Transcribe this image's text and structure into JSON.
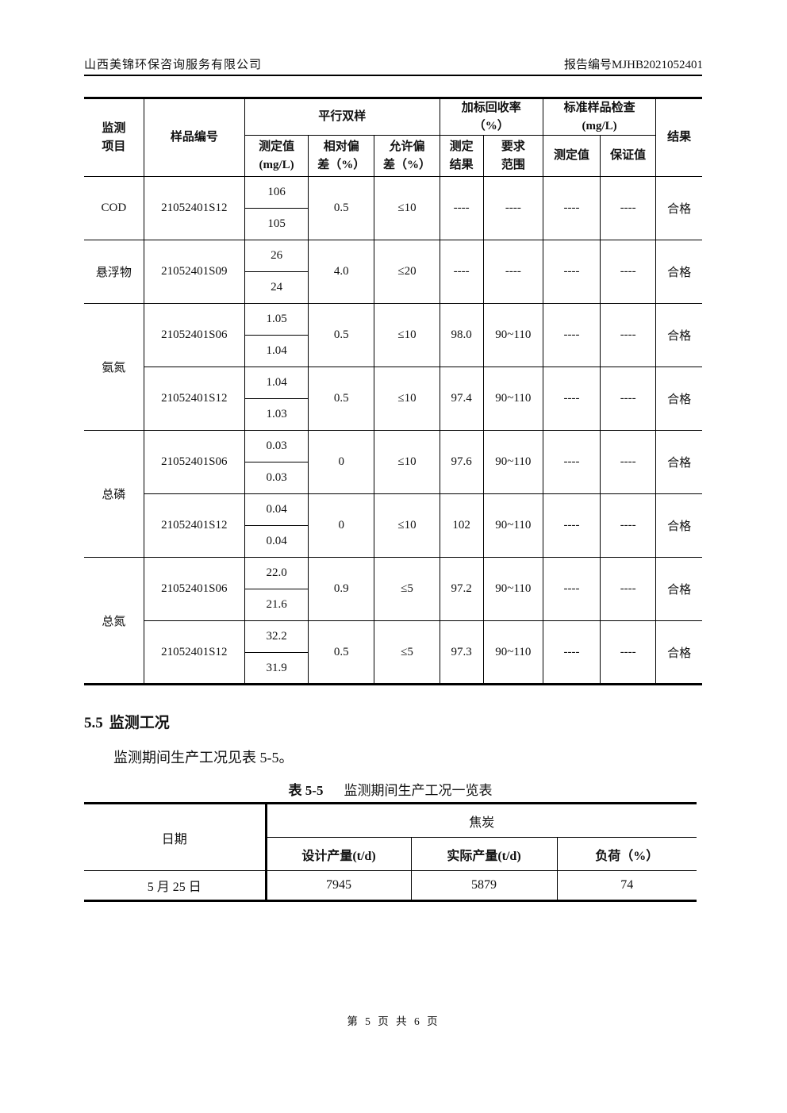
{
  "page_header": {
    "company": "山西美锦环保咨询服务有限公司",
    "report_no": "报告编号MJHB2021052401"
  },
  "qa_table": {
    "headers": {
      "item": "监测\n项目",
      "sample_id": "样品编号",
      "parallel_group": "平行双样",
      "measured_value": "测定值\n(mg/L)",
      "relative_dev": "相对偏\n差（%）",
      "allowed_dev": "允许偏\n差（%）",
      "recovery_group": "加标回收率\n（%）",
      "recovery_result": "测定\n结果",
      "recovery_range": "要求\n范围",
      "std_group": "标准样品检查\n(mg/L)",
      "std_measured": "测定值",
      "std_certified": "保证值",
      "result": "结果"
    },
    "groups": [
      {
        "param": "COD",
        "samples": [
          {
            "id": "21052401S12",
            "values": [
              "106",
              "105"
            ],
            "rel_dev": "0.5",
            "allow_dev": "≤10",
            "recovery": "----",
            "range": "----",
            "std_measured": "----",
            "std_certified": "----",
            "result": "合格"
          }
        ]
      },
      {
        "param": "悬浮物",
        "samples": [
          {
            "id": "21052401S09",
            "values": [
              "26",
              "24"
            ],
            "rel_dev": "4.0",
            "allow_dev": "≤20",
            "recovery": "----",
            "range": "----",
            "std_measured": "----",
            "std_certified": "----",
            "result": "合格"
          }
        ]
      },
      {
        "param": "氨氮",
        "samples": [
          {
            "id": "21052401S06",
            "values": [
              "1.05",
              "1.04"
            ],
            "rel_dev": "0.5",
            "allow_dev": "≤10",
            "recovery": "98.0",
            "range": "90~110",
            "std_measured": "----",
            "std_certified": "----",
            "result": "合格"
          },
          {
            "id": "21052401S12",
            "values": [
              "1.04",
              "1.03"
            ],
            "rel_dev": "0.5",
            "allow_dev": "≤10",
            "recovery": "97.4",
            "range": "90~110",
            "std_measured": "----",
            "std_certified": "----",
            "result": "合格"
          }
        ]
      },
      {
        "param": "总磷",
        "samples": [
          {
            "id": "21052401S06",
            "values": [
              "0.03",
              "0.03"
            ],
            "rel_dev": "0",
            "allow_dev": "≤10",
            "recovery": "97.6",
            "range": "90~110",
            "std_measured": "----",
            "std_certified": "----",
            "result": "合格"
          },
          {
            "id": "21052401S12",
            "values": [
              "0.04",
              "0.04"
            ],
            "rel_dev": "0",
            "allow_dev": "≤10",
            "recovery": "102",
            "range": "90~110",
            "std_measured": "----",
            "std_certified": "----",
            "result": "合格"
          }
        ]
      },
      {
        "param": "总氮",
        "samples": [
          {
            "id": "21052401S06",
            "values": [
              "22.0",
              "21.6"
            ],
            "rel_dev": "0.9",
            "allow_dev": "≤5",
            "recovery": "97.2",
            "range": "90~110",
            "std_measured": "----",
            "std_certified": "----",
            "result": "合格"
          },
          {
            "id": "21052401S12",
            "values": [
              "32.2",
              "31.9"
            ],
            "rel_dev": "0.5",
            "allow_dev": "≤5",
            "recovery": "97.3",
            "range": "90~110",
            "std_measured": "----",
            "std_certified": "----",
            "result": "合格"
          }
        ]
      }
    ]
  },
  "section": {
    "number": "5.5",
    "title": "监测工况",
    "paragraph": "监测期间生产工况见表 5-5。"
  },
  "production_table": {
    "caption_label": "表 5-5",
    "caption_title": "监测期间生产工况一览表",
    "date_header": "日期",
    "product_group": "焦炭",
    "columns": [
      "设计产量(t/d)",
      "实际产量(t/d)",
      "负荷（%）"
    ],
    "rows": [
      {
        "date": "5 月 25 日",
        "design": "7945",
        "actual": "5879",
        "load": "74"
      }
    ]
  },
  "footer": {
    "page_text": "第 5 页 共 6 页"
  }
}
